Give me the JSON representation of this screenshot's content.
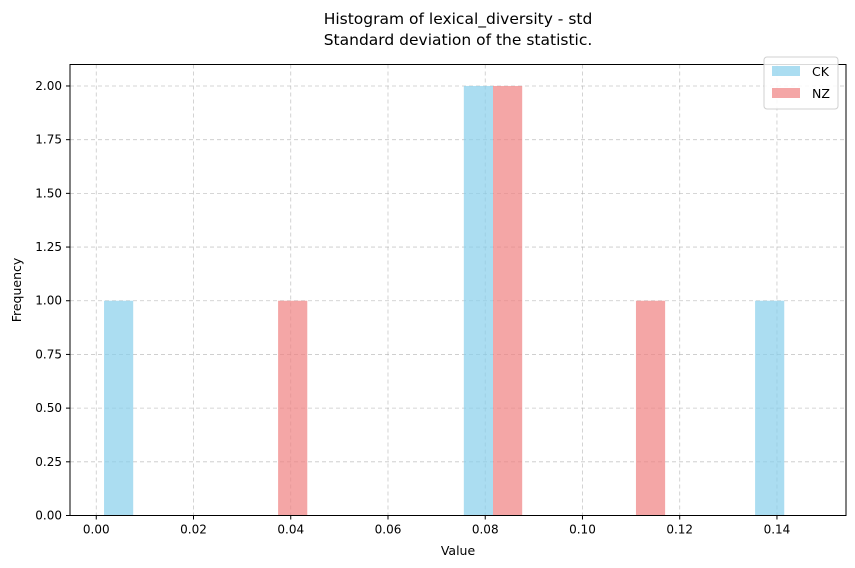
{
  "chart_data": {
    "type": "bar",
    "title": "Histogram of lexical_diversity - std",
    "subtitle": "Standard deviation of the statistic.",
    "xlabel": "Value",
    "ylabel": "Frequency",
    "xlim": [
      -0.0054,
      0.1542
    ],
    "ylim": [
      0,
      2.1
    ],
    "xticks": [
      0.0,
      0.02,
      0.04,
      0.06,
      0.08,
      0.1,
      0.12,
      0.14
    ],
    "xtick_labels": [
      "0.00",
      "0.02",
      "0.04",
      "0.06",
      "0.08",
      "0.10",
      "0.12",
      "0.14"
    ],
    "yticks": [
      0,
      0.25,
      0.5,
      0.75,
      1.0,
      1.25,
      1.5,
      1.75,
      2.0
    ],
    "ytick_labels": [
      "0.00",
      "0.25",
      "0.50",
      "0.75",
      "1.00",
      "1.25",
      "1.50",
      "1.75",
      "2.00"
    ],
    "grid": true,
    "legend_position": "top-right",
    "bar_width": 0.006,
    "series": [
      {
        "name": "CK",
        "color": "#87CEEB",
        "bars": [
          {
            "x": 0.0016,
            "value": 1
          },
          {
            "x": 0.0756,
            "value": 2
          },
          {
            "x": 0.1355,
            "value": 1
          }
        ]
      },
      {
        "name": "NZ",
        "color": "#F08080",
        "bars": [
          {
            "x": 0.0374,
            "value": 1
          },
          {
            "x": 0.0816,
            "value": 2
          },
          {
            "x": 0.111,
            "value": 1
          }
        ]
      }
    ]
  }
}
